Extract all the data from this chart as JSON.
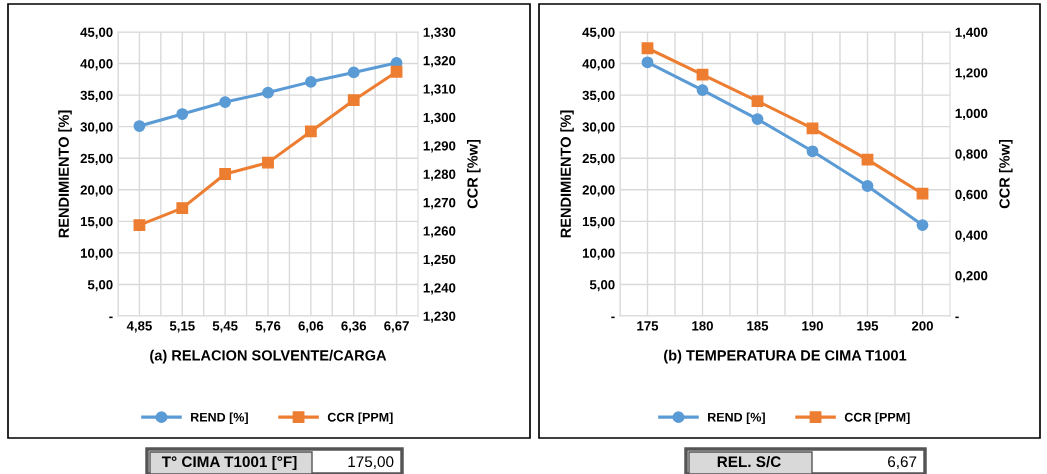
{
  "chart_data": [
    {
      "type": "line",
      "xlabel": "(a) RELACION SOLVENTE/CARGA",
      "ylabel": "RENDIMIENTO [%]",
      "y2label": "CCR [%w]",
      "categories": [
        "4,85",
        "5,15",
        "5,45",
        "5,76",
        "6,06",
        "6,36",
        "6,67"
      ],
      "series": [
        {
          "name": "REND [%]",
          "color": "#5b9bd5",
          "marker": "circle",
          "values": [
            30.1,
            32.0,
            33.9,
            35.4,
            37.1,
            38.6,
            40.1
          ]
        },
        {
          "name": "CCR [PPM]",
          "color": "#ed7d31",
          "marker": "square",
          "axis": "y2",
          "values": [
            1.262,
            1.268,
            1.28,
            1.284,
            1.295,
            1.306,
            1.316
          ]
        }
      ],
      "ylim": [
        0,
        45
      ],
      "yticks": [
        {
          "value": 0,
          "label": "-"
        },
        {
          "value": 5,
          "label": "5,00"
        },
        {
          "value": 10,
          "label": "10,00"
        },
        {
          "value": 15,
          "label": "15,00"
        },
        {
          "value": 20,
          "label": "20,00"
        },
        {
          "value": 25,
          "label": "25,00"
        },
        {
          "value": 30,
          "label": "30,00"
        },
        {
          "value": 35,
          "label": "35,00"
        },
        {
          "value": 40,
          "label": "40,00"
        },
        {
          "value": 45,
          "label": "45,00"
        }
      ],
      "y2lim": [
        1.23,
        1.33
      ],
      "y2ticks": [
        {
          "value": 1.23,
          "label": "1,230"
        },
        {
          "value": 1.24,
          "label": "1,240"
        },
        {
          "value": 1.25,
          "label": "1,250"
        },
        {
          "value": 1.26,
          "label": "1,260"
        },
        {
          "value": 1.27,
          "label": "1,270"
        },
        {
          "value": 1.28,
          "label": "1,280"
        },
        {
          "value": 1.29,
          "label": "1,290"
        },
        {
          "value": 1.3,
          "label": "1,300"
        },
        {
          "value": 1.31,
          "label": "1,310"
        },
        {
          "value": 1.32,
          "label": "1,320"
        },
        {
          "value": 1.33,
          "label": "1,330"
        }
      ],
      "grid": true,
      "legend": "bottom",
      "line_style": "solid",
      "annotations": [
        "T° CIMA T1001 [°F]",
        "175,00"
      ]
    },
    {
      "type": "line",
      "xlabel": "(b) TEMPERATURA DE CIMA T1001",
      "ylabel": "RENDIMIENTO [%]",
      "y2label": "CCR [%w]",
      "categories": [
        "175",
        "180",
        "185",
        "190",
        "195",
        "200"
      ],
      "series": [
        {
          "name": "REND [%]",
          "color": "#5b9bd5",
          "marker": "circle",
          "values": [
            40.2,
            35.8,
            31.2,
            26.1,
            20.6,
            14.4
          ]
        },
        {
          "name": "CCR [PPM]",
          "color": "#ed7d31",
          "marker": "square",
          "axis": "y2",
          "values": [
            1.32,
            1.19,
            1.059,
            0.925,
            0.771,
            0.603
          ]
        }
      ],
      "ylim": [
        0,
        45
      ],
      "yticks": [
        {
          "value": 0,
          "label": "-"
        },
        {
          "value": 5,
          "label": "5,00"
        },
        {
          "value": 10,
          "label": "10,00"
        },
        {
          "value": 15,
          "label": "15,00"
        },
        {
          "value": 20,
          "label": "20,00"
        },
        {
          "value": 25,
          "label": "25,00"
        },
        {
          "value": 30,
          "label": "30,00"
        },
        {
          "value": 35,
          "label": "35,00"
        },
        {
          "value": 40,
          "label": "40,00"
        },
        {
          "value": 45,
          "label": "45,00"
        }
      ],
      "y2lim": [
        0,
        1.4
      ],
      "y2ticks": [
        {
          "value": 0,
          "label": "-"
        },
        {
          "value": 0.2,
          "label": "0,200"
        },
        {
          "value": 0.4,
          "label": "0,400"
        },
        {
          "value": 0.6,
          "label": "0,600"
        },
        {
          "value": 0.8,
          "label": "0,800"
        },
        {
          "value": 1.0,
          "label": "1,000"
        },
        {
          "value": 1.2,
          "label": "1,200"
        },
        {
          "value": 1.4,
          "label": "1,400"
        }
      ],
      "grid": true,
      "legend": "bottom",
      "line_style": "solid",
      "annotations": [
        "REL. S/C",
        "6,67"
      ]
    }
  ]
}
